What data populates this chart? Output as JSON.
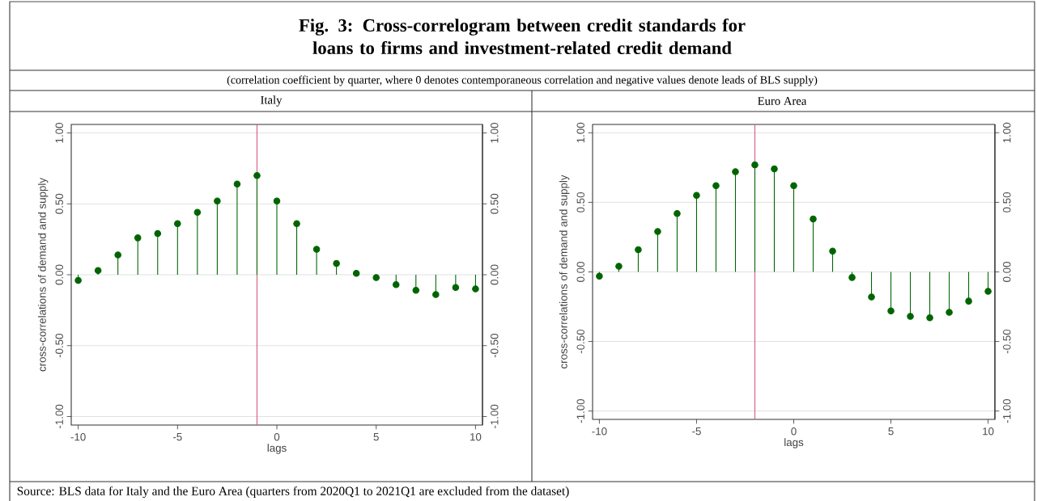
{
  "chart_data": [
    {
      "type": "lollipop",
      "title": "Italy",
      "xlabel": "lags",
      "ylabel": "cross-correlations of demand and supply",
      "x": [
        -10,
        -9,
        -8,
        -7,
        -6,
        -5,
        -4,
        -3,
        -2,
        -1,
        0,
        1,
        2,
        3,
        4,
        5,
        6,
        7,
        8,
        9,
        10
      ],
      "series": [
        {
          "color": "#006400",
          "values": [
            -0.04,
            0.03,
            0.14,
            0.26,
            0.29,
            0.36,
            0.44,
            0.52,
            0.64,
            0.7,
            0.52,
            0.36,
            0.18,
            0.08,
            0.01,
            -0.02,
            -0.07,
            -0.11,
            -0.14,
            -0.09,
            -0.1
          ]
        }
      ],
      "xlim": [
        -10.35,
        10.35
      ],
      "xticks": [
        -10,
        -5,
        0,
        5,
        10
      ],
      "ylim": [
        -1.06,
        1.06
      ],
      "yticks": [
        {
          "value": -1,
          "label": "-1.00"
        },
        {
          "value": -0.5,
          "label": "-0.50"
        },
        {
          "value": 0,
          "label": "0.00"
        },
        {
          "value": 0.5,
          "label": "0.50"
        },
        {
          "value": 1,
          "label": "1.00"
        }
      ],
      "y2lim": [
        -1.06,
        1.06
      ],
      "y2ticks": [
        {
          "value": -1,
          "label": "-1.00"
        },
        {
          "value": -0.5,
          "label": "-0.50"
        },
        {
          "value": 0,
          "label": "0.00"
        },
        {
          "value": 0.5,
          "label": "0.50"
        },
        {
          "value": 1,
          "label": "1.00"
        }
      ],
      "grid": "y",
      "marker": "circle",
      "ref_lines": [
        {
          "axis": "x",
          "value": -1,
          "color": "#d4587e"
        }
      ],
      "annotations": [
        "Fig. 3: Cross-correlogram between credit standards for loans to firms and investment-related credit demand",
        "(correlation coefficient by quarter, where 0 denotes contemporaneous correlation and negative values denote leads of BLS supply)",
        "Source: BLS data for Italy and the Euro Area (quarters from 2020Q1 to 2021Q1 are excluded from the dataset)"
      ]
    },
    {
      "type": "lollipop",
      "title": "Euro Area",
      "xlabel": "lags",
      "ylabel": "cross-correlations of demand and supply",
      "x": [
        -10,
        -9,
        -8,
        -7,
        -6,
        -5,
        -4,
        -3,
        -2,
        -1,
        0,
        1,
        2,
        3,
        4,
        5,
        6,
        7,
        8,
        9,
        10
      ],
      "series": [
        {
          "color": "#006400",
          "values": [
            -0.03,
            0.04,
            0.16,
            0.29,
            0.42,
            0.55,
            0.62,
            0.72,
            0.77,
            0.74,
            0.62,
            0.38,
            0.15,
            -0.04,
            -0.18,
            -0.28,
            -0.32,
            -0.33,
            -0.29,
            -0.21,
            -0.14
          ]
        }
      ],
      "xlim": [
        -10.35,
        10.35
      ],
      "xticks": [
        -10,
        -5,
        0,
        5,
        10
      ],
      "ylim": [
        -1.06,
        1.06
      ],
      "yticks": [
        {
          "value": -1,
          "label": "-1.00"
        },
        {
          "value": -0.5,
          "label": "-0.50"
        },
        {
          "value": 0,
          "label": "0.00"
        },
        {
          "value": 0.5,
          "label": "0.50"
        },
        {
          "value": 1,
          "label": "1.00"
        }
      ],
      "y2lim": [
        -1.06,
        1.06
      ],
      "y2ticks": [
        {
          "value": -1,
          "label": "-1.00"
        },
        {
          "value": -0.5,
          "label": "-0.50"
        },
        {
          "value": 0,
          "label": "0.00"
        },
        {
          "value": 0.5,
          "label": "0.50"
        },
        {
          "value": 1,
          "label": "1.00"
        }
      ],
      "grid": "y",
      "marker": "circle",
      "ref_lines": [
        {
          "axis": "x",
          "value": -2,
          "color": "#d4587e"
        }
      ]
    }
  ]
}
